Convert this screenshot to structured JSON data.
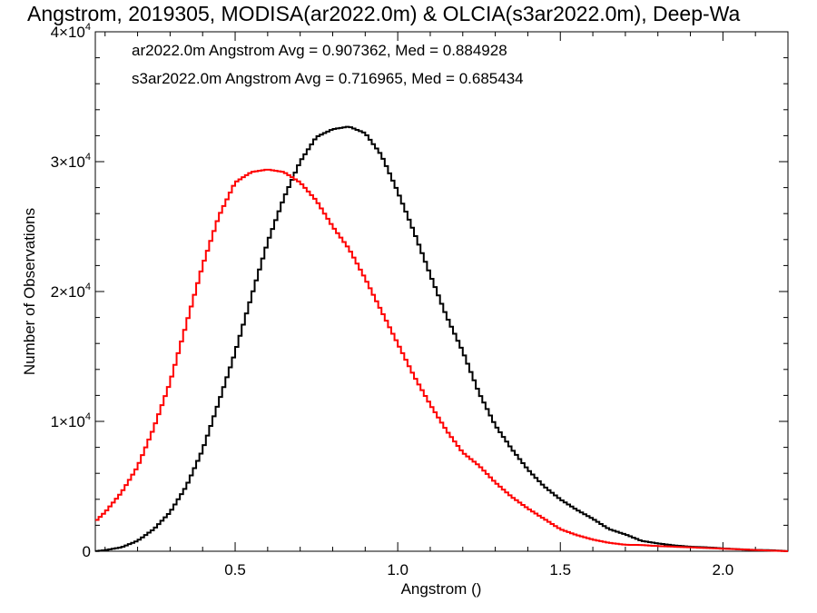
{
  "chart_data": {
    "type": "line",
    "title": "Angstrom, 2019305, MODISA(ar2022.0m) & OLCIA(s3ar2022.0m), Deep-Wa",
    "xlabel": "Angstrom ()",
    "ylabel": "Number of Observations",
    "xlim": [
      0.07,
      2.2
    ],
    "ylim": [
      0,
      40000
    ],
    "step_plot": true,
    "x_ticks": [
      {
        "value": 0.5,
        "label": "0.5"
      },
      {
        "value": 1.0,
        "label": "1.0"
      },
      {
        "value": 1.5,
        "label": "1.5"
      },
      {
        "value": 2.0,
        "label": "2.0"
      }
    ],
    "y_ticks": [
      {
        "value": 0,
        "base": "0",
        "exp": ""
      },
      {
        "value": 10000,
        "base": "1×10",
        "exp": "4"
      },
      {
        "value": 20000,
        "base": "2×10",
        "exp": "4"
      },
      {
        "value": 30000,
        "base": "3×10",
        "exp": "4"
      },
      {
        "value": 40000,
        "base": "4×10",
        "exp": "4"
      }
    ],
    "legend_position": "top-left",
    "series": [
      {
        "name": "ar2022.0m Angstrom Avg = 0.907362, Med = 0.884928",
        "color": "#000000",
        "x": [
          0.07,
          0.1,
          0.15,
          0.2,
          0.25,
          0.3,
          0.35,
          0.4,
          0.45,
          0.5,
          0.55,
          0.6,
          0.65,
          0.7,
          0.75,
          0.8,
          0.85,
          0.9,
          0.95,
          1.0,
          1.05,
          1.1,
          1.15,
          1.2,
          1.25,
          1.3,
          1.35,
          1.4,
          1.45,
          1.5,
          1.55,
          1.6,
          1.65,
          1.7,
          1.75,
          1.8,
          1.85,
          1.9,
          1.95,
          2.0,
          2.05,
          2.1,
          2.15,
          2.2
        ],
        "y": [
          0,
          80,
          300,
          800,
          1700,
          3000,
          5000,
          7800,
          11500,
          15300,
          19600,
          23800,
          27200,
          30000,
          31900,
          32500,
          32700,
          32200,
          30500,
          27700,
          24600,
          21300,
          18100,
          15400,
          12200,
          9700,
          7900,
          6300,
          5000,
          4000,
          3200,
          2500,
          1700,
          1300,
          800,
          600,
          450,
          350,
          300,
          220,
          150,
          100,
          80,
          0
        ]
      },
      {
        "name": "s3ar2022.0m Angstrom Avg = 0.716965, Med = 0.685434",
        "color": "#ff0000",
        "x": [
          0.07,
          0.1,
          0.15,
          0.2,
          0.25,
          0.3,
          0.35,
          0.4,
          0.45,
          0.5,
          0.55,
          0.6,
          0.65,
          0.7,
          0.75,
          0.8,
          0.85,
          0.9,
          0.95,
          1.0,
          1.05,
          1.1,
          1.15,
          1.2,
          1.25,
          1.3,
          1.35,
          1.4,
          1.45,
          1.5,
          1.55,
          1.6,
          1.65,
          1.7,
          1.75,
          1.8,
          1.85,
          1.9,
          1.95,
          2.0,
          2.05,
          2.1,
          2.15,
          2.2
        ],
        "y": [
          2300,
          3000,
          4500,
          6500,
          9500,
          13000,
          17500,
          22000,
          25800,
          28400,
          29200,
          29400,
          29200,
          28400,
          27000,
          25000,
          23300,
          21000,
          18500,
          16000,
          13500,
          11300,
          9300,
          7600,
          6600,
          5300,
          4200,
          3300,
          2500,
          1700,
          1250,
          900,
          650,
          500,
          480,
          400,
          350,
          300,
          250,
          200,
          150,
          90,
          50,
          0
        ]
      }
    ]
  }
}
